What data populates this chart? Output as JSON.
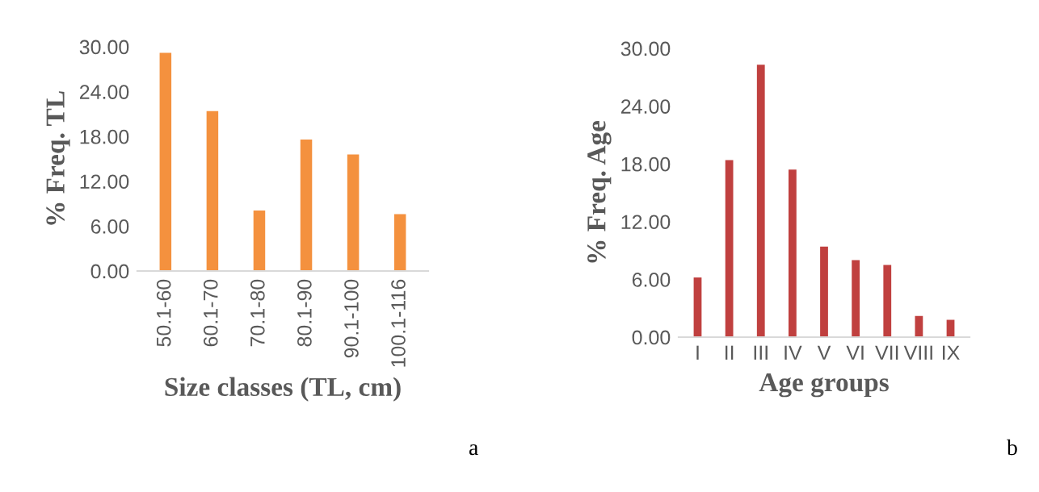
{
  "chart_data": [
    {
      "type": "bar",
      "xlabel": "Size classes (TL, cm)",
      "ylabel": "% Freq. TL",
      "categories": [
        "50.1-60",
        "60.1-70",
        "70.1-80",
        "80.1-90",
        "90.1-100",
        "100.1-116"
      ],
      "values": [
        29.2,
        21.4,
        8.1,
        17.6,
        15.6,
        7.6
      ],
      "color": "#f4913e",
      "ylim": [
        0,
        30
      ],
      "yticks": [
        {
          "value": 0,
          "label": "0.00"
        },
        {
          "value": 6,
          "label": "6.00"
        },
        {
          "value": 12,
          "label": "12.00"
        },
        {
          "value": 18,
          "label": "18.00"
        },
        {
          "value": 24,
          "label": "24.00"
        },
        {
          "value": 30,
          "label": "30.00"
        }
      ],
      "grid": false,
      "annotations": [
        "a"
      ]
    },
    {
      "type": "bar",
      "xlabel": "Age groups",
      "ylabel": "% Freq. Age",
      "categories": [
        "I",
        "II",
        "III",
        "IV",
        "V",
        "VI",
        "VII",
        "VIII",
        "IX"
      ],
      "values": [
        6.2,
        18.4,
        28.3,
        17.4,
        9.4,
        8.0,
        7.5,
        2.2,
        1.8
      ],
      "color": "#c0403f",
      "ylim": [
        0,
        30
      ],
      "yticks": [
        {
          "value": 0,
          "label": "0.00"
        },
        {
          "value": 6,
          "label": "6.00"
        },
        {
          "value": 12,
          "label": "12.00"
        },
        {
          "value": 18,
          "label": "18.00"
        },
        {
          "value": 24,
          "label": "24.00"
        },
        {
          "value": 30,
          "label": "30.00"
        }
      ],
      "grid": false,
      "annotations": [
        "b"
      ]
    }
  ]
}
